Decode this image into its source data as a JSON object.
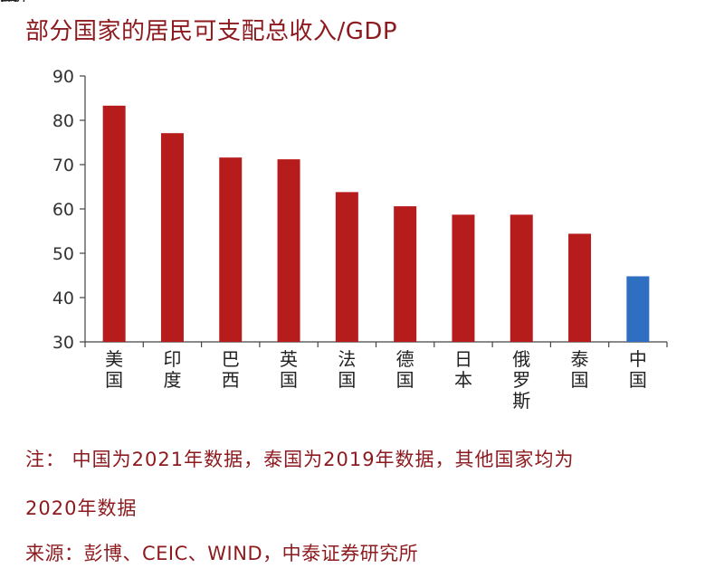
{
  "title": "部分国家的居民可支配总收入/GDP",
  "colors": {
    "default_bar": "#b71c1c",
    "highlight_bar": "#2e6fc2",
    "axis": "#444444",
    "text": "#8c1a1e"
  },
  "chart_data": {
    "type": "bar",
    "categories": [
      "美国",
      "印度",
      "巴西",
      "英国",
      "法国",
      "德国",
      "日本",
      "俄罗斯",
      "泰国",
      "中国"
    ],
    "values": [
      83.3,
      77.1,
      71.6,
      71.2,
      63.8,
      60.6,
      58.7,
      58.7,
      54.4,
      44.8
    ],
    "highlight": "中国",
    "ylim": [
      30,
      90
    ],
    "yticks": [
      30,
      40,
      50,
      60,
      70,
      80,
      90
    ],
    "grid": false,
    "legend": "none"
  },
  "notes": {
    "line1": "注：  中国为2021年数据，泰国为2019年数据，其他国家均为",
    "line2": "2020年数据",
    "source": "来源：彭博、CEIC、WIND，中泰证券研究所"
  }
}
